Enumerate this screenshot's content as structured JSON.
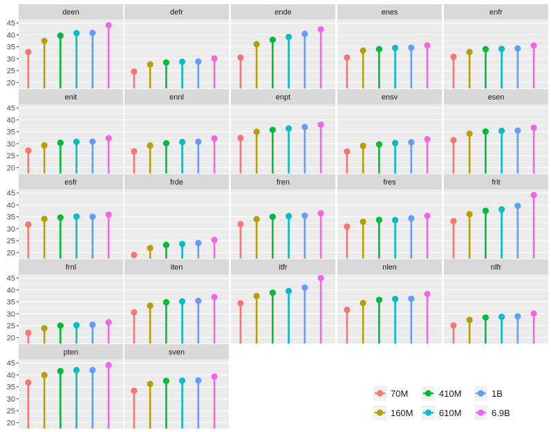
{
  "chart_data": {
    "type": "lollipop-facet",
    "title": "",
    "xlabel": "",
    "ylabel": "",
    "ylim": [
      17.5,
      46.5
    ],
    "yticks": [
      20,
      25,
      30,
      35,
      40,
      45
    ],
    "grid": true,
    "legend_position": "bottom-right",
    "series": [
      {
        "name": "70M",
        "color": "#F8766D"
      },
      {
        "name": "160M",
        "color": "#B79F00"
      },
      {
        "name": "410M",
        "color": "#00BA38"
      },
      {
        "name": "610M",
        "color": "#00BFC4"
      },
      {
        "name": "1B",
        "color": "#619CFF"
      },
      {
        "name": "6.9B",
        "color": "#F564E3"
      }
    ],
    "legend_order": [
      "70M",
      "410M",
      "1B",
      "160M",
      "610M",
      "6.9B"
    ],
    "panels": [
      {
        "label": "deen",
        "values": [
          32.8,
          37.4,
          39.7,
          40.7,
          40.8,
          44.0
        ]
      },
      {
        "label": "defr",
        "values": [
          24.6,
          27.6,
          28.4,
          28.7,
          28.8,
          30.1
        ]
      },
      {
        "label": "ende",
        "values": [
          30.5,
          36.1,
          37.9,
          39.1,
          40.4,
          42.3
        ]
      },
      {
        "label": "enes",
        "values": [
          30.5,
          33.4,
          34.0,
          34.5,
          34.6,
          35.6
        ]
      },
      {
        "label": "enfr",
        "values": [
          30.8,
          32.8,
          34.0,
          34.1,
          34.3,
          35.5
        ]
      },
      {
        "label": "enit",
        "values": [
          27.1,
          29.3,
          30.4,
          30.8,
          30.9,
          32.3
        ]
      },
      {
        "label": "ennl",
        "values": [
          26.8,
          29.2,
          30.2,
          30.7,
          30.8,
          32.2
        ]
      },
      {
        "label": "enpt",
        "values": [
          32.4,
          35.0,
          35.8,
          36.4,
          37.0,
          38.0
        ]
      },
      {
        "label": "ensv",
        "values": [
          26.7,
          29.1,
          29.7,
          30.3,
          30.6,
          31.9
        ]
      },
      {
        "label": "esen",
        "values": [
          31.5,
          34.2,
          35.1,
          35.4,
          35.5,
          36.7
        ]
      },
      {
        "label": "esfr",
        "values": [
          31.7,
          34.1,
          34.7,
          35.1,
          35.0,
          35.9
        ]
      },
      {
        "label": "frde",
        "values": [
          19.0,
          21.9,
          23.2,
          23.6,
          24.0,
          25.3
        ]
      },
      {
        "label": "fren",
        "values": [
          31.9,
          34.0,
          35.0,
          35.3,
          35.5,
          36.5
        ]
      },
      {
        "label": "fres",
        "values": [
          30.9,
          32.9,
          33.7,
          33.6,
          34.4,
          35.4
        ]
      },
      {
        "label": "frit",
        "values": [
          33.2,
          36.1,
          37.5,
          38.1,
          39.6,
          44.1
        ]
      },
      {
        "label": "frnl",
        "values": [
          22.0,
          23.9,
          25.0,
          25.2,
          25.4,
          26.4
        ]
      },
      {
        "label": "iten",
        "values": [
          30.6,
          33.4,
          34.8,
          35.2,
          35.4,
          37.0
        ]
      },
      {
        "label": "itfr",
        "values": [
          34.4,
          37.4,
          38.8,
          39.5,
          41.0,
          45.0
        ]
      },
      {
        "label": "nlen",
        "values": [
          31.6,
          34.5,
          35.8,
          36.2,
          36.3,
          38.3
        ]
      },
      {
        "label": "nlfr",
        "values": [
          25.1,
          27.4,
          28.4,
          28.7,
          28.9,
          30.1
        ]
      },
      {
        "label": "pten",
        "values": [
          36.8,
          39.9,
          41.6,
          42.0,
          42.0,
          44.1
        ]
      },
      {
        "label": "sven",
        "values": [
          33.4,
          36.2,
          37.5,
          37.6,
          37.7,
          39.3
        ]
      }
    ]
  }
}
